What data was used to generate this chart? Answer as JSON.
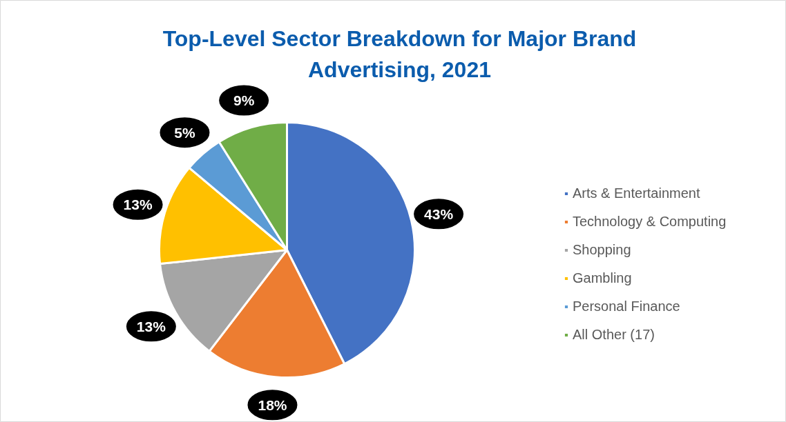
{
  "chart_data": {
    "type": "pie",
    "title": "Top-Level Sector Breakdown for Major Brand Advertising, 2021",
    "categories": [
      "Arts & Entertainment",
      "Technology & Computing",
      "Shopping",
      "Gambling",
      "Personal Finance",
      "All Other (17)"
    ],
    "values": [
      43,
      18,
      13,
      13,
      5,
      9
    ],
    "colors": [
      "#4472c4",
      "#ed7d31",
      "#a5a5a5",
      "#ffc000",
      "#5b9bd5",
      "#70ad47"
    ],
    "value_labels": [
      "43%",
      "18%",
      "13%",
      "13%",
      "5%",
      "9%"
    ],
    "legend": "right"
  }
}
